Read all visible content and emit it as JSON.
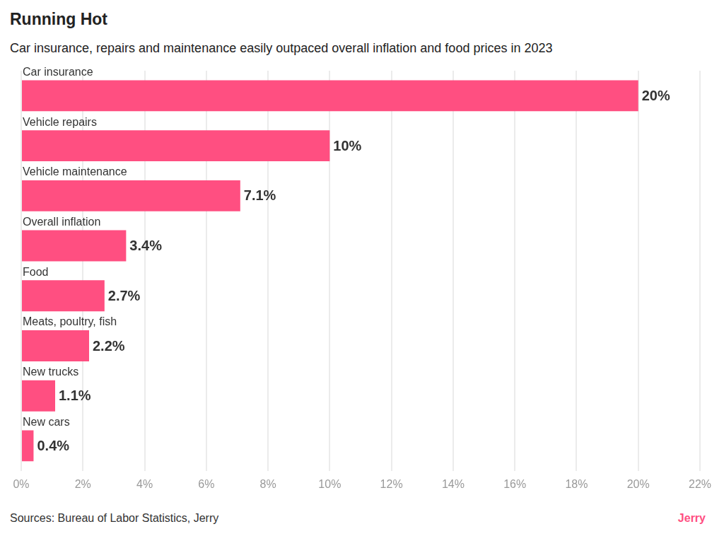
{
  "chart_data": {
    "type": "bar",
    "orientation": "horizontal",
    "title": "Running Hot",
    "subtitle": "Car insurance, repairs and maintenance easily outpaced overall inflation and food prices in 2023",
    "categories": [
      "Car insurance",
      "Vehicle repairs",
      "Vehicle maintenance",
      "Overall inflation",
      "Food",
      "Meats, poultry, fish",
      "New trucks",
      "New cars"
    ],
    "values": [
      20,
      10,
      7.1,
      3.4,
      2.7,
      2.2,
      1.1,
      0.4
    ],
    "value_labels": [
      "20%",
      "10%",
      "7.1%",
      "3.4%",
      "2.7%",
      "2.2%",
      "1.1%",
      "0.4%"
    ],
    "color": "#ff4f81",
    "xlim": [
      0,
      22
    ],
    "xticks": [
      {
        "value": 0,
        "label": "0%"
      },
      {
        "value": 2,
        "label": "2%"
      },
      {
        "value": 4,
        "label": "4%"
      },
      {
        "value": 6,
        "label": "6%"
      },
      {
        "value": 8,
        "label": "8%"
      },
      {
        "value": 10,
        "label": "10%"
      },
      {
        "value": 12,
        "label": "12%"
      },
      {
        "value": 14,
        "label": "14%"
      },
      {
        "value": 16,
        "label": "16%"
      },
      {
        "value": 18,
        "label": "18%"
      },
      {
        "value": 20,
        "label": "20%"
      },
      {
        "value": 22,
        "label": "22%"
      }
    ],
    "grid": true,
    "data_labels": true,
    "source": "Sources: Bureau of Labor Statistics, Jerry",
    "credit": "Jerry"
  }
}
